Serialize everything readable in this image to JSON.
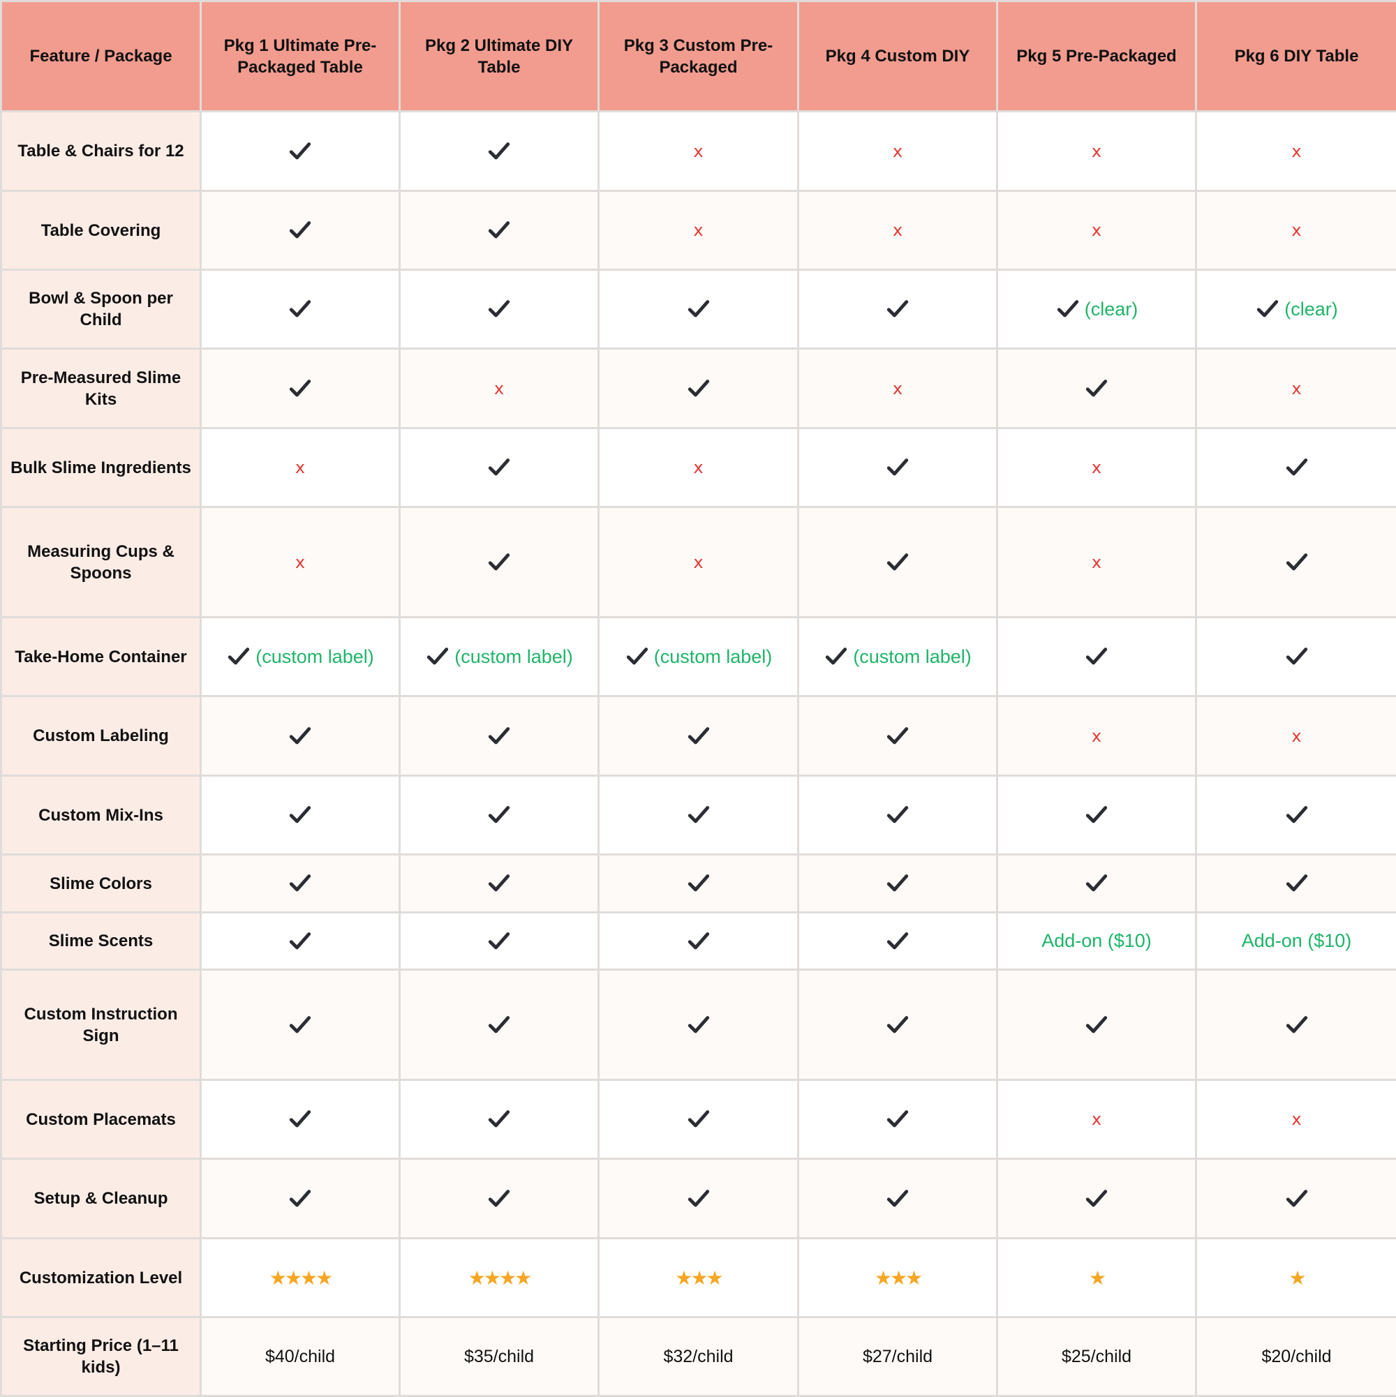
{
  "colors": {
    "header_bg": "#f29c8f",
    "feature_col_bg": "#fcece6",
    "row_alt_bg": "#fefaf7",
    "check": "#2b2d33",
    "cross": "#e53935",
    "note_green": "#1fb468",
    "star": "#f6a623"
  },
  "table": {
    "corner_label": "Feature / Package",
    "packages": [
      "Pkg 1 Ultimate Pre-Packaged Table",
      "Pkg 2 Ultimate DIY Table",
      "Pkg 3 Custom Pre-Packaged",
      "Pkg 4 Custom DIY",
      "Pkg 5 Pre-Packaged",
      "Pkg 6 DIY Table"
    ],
    "rows": [
      {
        "feature": "Table & Chairs for 12",
        "cells": [
          {
            "type": "check"
          },
          {
            "type": "check"
          },
          {
            "type": "cross",
            "text": "x"
          },
          {
            "type": "cross",
            "text": "x"
          },
          {
            "type": "cross",
            "text": "x"
          },
          {
            "type": "cross",
            "text": "x"
          }
        ]
      },
      {
        "feature": "Table Covering",
        "cells": [
          {
            "type": "check"
          },
          {
            "type": "check"
          },
          {
            "type": "cross",
            "text": "x"
          },
          {
            "type": "cross",
            "text": "x"
          },
          {
            "type": "cross",
            "text": "x"
          },
          {
            "type": "cross",
            "text": "x"
          }
        ]
      },
      {
        "feature": "Bowl & Spoon per Child",
        "cells": [
          {
            "type": "check"
          },
          {
            "type": "check"
          },
          {
            "type": "check"
          },
          {
            "type": "check"
          },
          {
            "type": "check-note",
            "text": "(clear)"
          },
          {
            "type": "check-note",
            "text": "(clear)"
          }
        ]
      },
      {
        "feature": "Pre-Measured Slime Kits",
        "cells": [
          {
            "type": "check"
          },
          {
            "type": "cross",
            "text": "x"
          },
          {
            "type": "check"
          },
          {
            "type": "cross",
            "text": "x"
          },
          {
            "type": "check"
          },
          {
            "type": "cross",
            "text": "x"
          }
        ]
      },
      {
        "feature": "Bulk Slime Ingredients",
        "cells": [
          {
            "type": "cross",
            "text": "x"
          },
          {
            "type": "check"
          },
          {
            "type": "cross",
            "text": "x"
          },
          {
            "type": "check"
          },
          {
            "type": "cross",
            "text": "x"
          },
          {
            "type": "check"
          }
        ]
      },
      {
        "feature": "Measuring Cups & Spoons",
        "cells": [
          {
            "type": "cross",
            "text": "x"
          },
          {
            "type": "check"
          },
          {
            "type": "cross",
            "text": "x"
          },
          {
            "type": "check"
          },
          {
            "type": "cross",
            "text": "x"
          },
          {
            "type": "check"
          }
        ]
      },
      {
        "feature": "Take-Home Container",
        "cells": [
          {
            "type": "check-note",
            "text": "(custom label)"
          },
          {
            "type": "check-note",
            "text": "(custom label)"
          },
          {
            "type": "check-note",
            "text": "(custom label)"
          },
          {
            "type": "check-note",
            "text": "(custom label)"
          },
          {
            "type": "check"
          },
          {
            "type": "check"
          }
        ]
      },
      {
        "feature": "Custom Labeling",
        "cells": [
          {
            "type": "check"
          },
          {
            "type": "check"
          },
          {
            "type": "check"
          },
          {
            "type": "check"
          },
          {
            "type": "cross",
            "text": "x"
          },
          {
            "type": "cross",
            "text": "x"
          }
        ]
      },
      {
        "feature": "Custom Mix-Ins",
        "cells": [
          {
            "type": "check"
          },
          {
            "type": "check"
          },
          {
            "type": "check"
          },
          {
            "type": "check"
          },
          {
            "type": "check"
          },
          {
            "type": "check"
          }
        ]
      },
      {
        "feature": "Slime Colors",
        "cells": [
          {
            "type": "check"
          },
          {
            "type": "check"
          },
          {
            "type": "check"
          },
          {
            "type": "check"
          },
          {
            "type": "check"
          },
          {
            "type": "check"
          }
        ]
      },
      {
        "feature": "Slime Scents",
        "cells": [
          {
            "type": "check"
          },
          {
            "type": "check"
          },
          {
            "type": "check"
          },
          {
            "type": "check"
          },
          {
            "type": "addon",
            "text": "Add-on ($10)"
          },
          {
            "type": "addon",
            "text": "Add-on ($10)"
          }
        ]
      },
      {
        "feature": "Custom Instruction Sign",
        "cells": [
          {
            "type": "check"
          },
          {
            "type": "check"
          },
          {
            "type": "check"
          },
          {
            "type": "check"
          },
          {
            "type": "check"
          },
          {
            "type": "check"
          }
        ]
      },
      {
        "feature": "Custom Placemats",
        "cells": [
          {
            "type": "check"
          },
          {
            "type": "check"
          },
          {
            "type": "check"
          },
          {
            "type": "check"
          },
          {
            "type": "cross",
            "text": "x"
          },
          {
            "type": "cross",
            "text": "x"
          }
        ]
      },
      {
        "feature": "Setup & Cleanup",
        "cells": [
          {
            "type": "check"
          },
          {
            "type": "check"
          },
          {
            "type": "check"
          },
          {
            "type": "check"
          },
          {
            "type": "check"
          },
          {
            "type": "check"
          }
        ]
      },
      {
        "feature": "Customization Level",
        "cells": [
          {
            "type": "stars",
            "count": 4
          },
          {
            "type": "stars",
            "count": 4
          },
          {
            "type": "stars",
            "count": 3
          },
          {
            "type": "stars",
            "count": 3
          },
          {
            "type": "stars",
            "count": 1
          },
          {
            "type": "stars",
            "count": 1
          }
        ]
      },
      {
        "feature": "Starting Price (1–11 kids)",
        "cells": [
          {
            "type": "price",
            "text": "$40/child"
          },
          {
            "type": "price",
            "text": "$35/child"
          },
          {
            "type": "price",
            "text": "$32/child"
          },
          {
            "type": "price",
            "text": "$27/child"
          },
          {
            "type": "price",
            "text": "$25/child"
          },
          {
            "type": "price",
            "text": "$20/child"
          }
        ]
      }
    ]
  }
}
